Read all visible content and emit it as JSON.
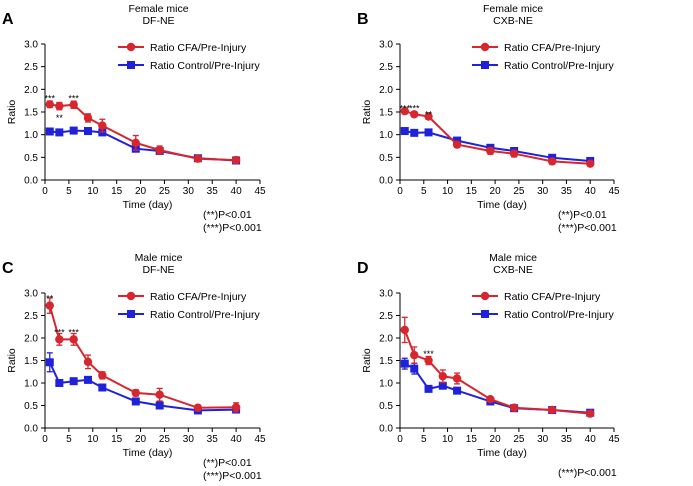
{
  "colors": {
    "cfa": "#d7262e",
    "control": "#1f22d9"
  },
  "chart_data": [
    {
      "letter": "A",
      "title": [
        "Female mice",
        "DF-NE"
      ],
      "type": "line",
      "xlabel": "Time (day)",
      "ylabel": "Ratio",
      "xlim": [
        0,
        45
      ],
      "ylim": [
        0,
        3.0
      ],
      "xticks": [
        "0",
        "5",
        "10",
        "15",
        "20",
        "25",
        "30",
        "35",
        "40",
        "45"
      ],
      "yticks": [
        "0.0",
        "0.5",
        "1.0",
        "1.5",
        "2.0",
        "2.5",
        "3.0"
      ],
      "x": [
        1,
        3,
        6,
        9,
        12,
        19,
        24,
        32,
        40
      ],
      "series": [
        {
          "name": "Ratio CFA/Pre-Injury",
          "key": "cfa",
          "values": [
            1.67,
            1.63,
            1.66,
            1.37,
            1.2,
            0.82,
            0.66,
            0.47,
            0.44
          ],
          "errors": [
            0.07,
            0.08,
            0.08,
            0.09,
            0.14,
            0.16,
            0.09,
            0.06,
            0.07
          ]
        },
        {
          "name": "Ratio Control/Pre-Injury",
          "key": "control",
          "values": [
            1.07,
            1.05,
            1.09,
            1.08,
            1.05,
            0.69,
            0.64,
            0.48,
            0.43
          ],
          "errors": [
            0.05,
            0.05,
            0.06,
            0.06,
            0.06,
            0.05,
            0.05,
            0.05,
            0.05
          ]
        }
      ],
      "annotations": [
        {
          "text": "***",
          "x": 1,
          "y": 1.8
        },
        {
          "text": "**",
          "x": 3,
          "y": 1.37
        },
        {
          "text": "***",
          "x": 6,
          "y": 1.8
        }
      ],
      "notes": [
        "(**)P<0.01",
        "(***)P<0.001"
      ],
      "legend_position": "top-right"
    },
    {
      "letter": "B",
      "title": [
        "Female mice",
        "CXB-NE"
      ],
      "type": "line",
      "xlabel": "Time (day)",
      "ylabel": "Ratio",
      "xlim": [
        0,
        45
      ],
      "ylim": [
        0,
        3.0
      ],
      "xticks": [
        "0",
        "5",
        "10",
        "15",
        "20",
        "25",
        "30",
        "35",
        "40",
        "45"
      ],
      "yticks": [
        "0.0",
        "0.5",
        "1.0",
        "1.5",
        "2.0",
        "2.5",
        "3.0"
      ],
      "x": [
        1,
        3,
        6,
        12,
        19,
        24,
        32,
        40
      ],
      "series": [
        {
          "name": "Ratio CFA/Pre-Injury",
          "key": "cfa",
          "values": [
            1.52,
            1.45,
            1.4,
            0.78,
            0.64,
            0.58,
            0.41,
            0.36
          ],
          "errors": [
            0.06,
            0.05,
            0.06,
            0.06,
            0.07,
            0.07,
            0.06,
            0.05
          ]
        },
        {
          "name": "Ratio Control/Pre-Injury",
          "key": "control",
          "values": [
            1.08,
            1.04,
            1.05,
            0.87,
            0.71,
            0.64,
            0.49,
            0.42
          ],
          "errors": [
            0.04,
            0.04,
            0.04,
            0.05,
            0.05,
            0.05,
            0.04,
            0.04
          ]
        }
      ],
      "annotations": [
        {
          "text": "***",
          "x": 1,
          "y": 1.58
        },
        {
          "text": "***",
          "x": 3,
          "y": 1.58
        },
        {
          "text": "**",
          "x": 6,
          "y": 1.45
        }
      ],
      "notes": [
        "(**)P<0.01",
        "(***)P<0.001"
      ],
      "legend_position": "top-right"
    },
    {
      "letter": "C",
      "title": [
        "Male mice",
        "DF-NE"
      ],
      "type": "line",
      "xlabel": "Time (day)",
      "ylabel": "Ratio",
      "xlim": [
        0,
        45
      ],
      "ylim": [
        0,
        3.0
      ],
      "xticks": [
        "0",
        "5",
        "10",
        "15",
        "20",
        "25",
        "30",
        "35",
        "40",
        "45"
      ],
      "yticks": [
        "0.0",
        "0.5",
        "1.0",
        "1.5",
        "2.0",
        "2.5",
        "3.0"
      ],
      "x": [
        1,
        3,
        6,
        9,
        12,
        19,
        24,
        32,
        40
      ],
      "series": [
        {
          "name": "Ratio CFA/Pre-Injury",
          "key": "cfa",
          "values": [
            2.72,
            1.97,
            1.97,
            1.47,
            1.17,
            0.78,
            0.74,
            0.45,
            0.46
          ],
          "errors": [
            0.17,
            0.13,
            0.13,
            0.15,
            0.08,
            0.07,
            0.14,
            0.06,
            0.1
          ]
        },
        {
          "name": "Ratio Control/Pre-Injury",
          "key": "control",
          "values": [
            1.46,
            1.0,
            1.04,
            1.07,
            0.9,
            0.59,
            0.5,
            0.39,
            0.41
          ],
          "errors": [
            0.21,
            0.05,
            0.05,
            0.07,
            0.06,
            0.05,
            0.06,
            0.04,
            0.04
          ]
        }
      ],
      "annotations": [
        {
          "text": "**",
          "x": 1,
          "y": 2.88
        },
        {
          "text": "***",
          "x": 3,
          "y": 2.12
        },
        {
          "text": "***",
          "x": 6,
          "y": 2.12
        }
      ],
      "notes": [
        "(**)P<0.01",
        "(***)P<0.001"
      ],
      "legend_position": "top-right"
    },
    {
      "letter": "D",
      "title": [
        "Male mice",
        "CXB-NE"
      ],
      "type": "line",
      "xlabel": "Time (day)",
      "ylabel": "Ratio",
      "xlim": [
        0,
        45
      ],
      "ylim": [
        0,
        3.0
      ],
      "xticks": [
        "0",
        "5",
        "10",
        "15",
        "20",
        "25",
        "30",
        "35",
        "40",
        "45"
      ],
      "yticks": [
        "0.0",
        "0.5",
        "1.0",
        "1.5",
        "2.0",
        "2.5",
        "3.0"
      ],
      "x": [
        1,
        3,
        6,
        9,
        12,
        19,
        24,
        32,
        40
      ],
      "series": [
        {
          "name": "Ratio CFA/Pre-Injury",
          "key": "cfa",
          "values": [
            2.18,
            1.62,
            1.5,
            1.15,
            1.1,
            0.64,
            0.45,
            0.4,
            0.32
          ],
          "errors": [
            0.28,
            0.18,
            0.09,
            0.14,
            0.12,
            0.05,
            0.05,
            0.05,
            0.04
          ]
        },
        {
          "name": "Ratio Control/Pre-Injury",
          "key": "control",
          "values": [
            1.43,
            1.32,
            0.87,
            0.94,
            0.83,
            0.59,
            0.44,
            0.4,
            0.34
          ],
          "errors": [
            0.12,
            0.12,
            0.05,
            0.06,
            0.05,
            0.05,
            0.04,
            0.04,
            0.04
          ]
        }
      ],
      "annotations": [
        {
          "text": "***",
          "x": 6,
          "y": 1.65
        }
      ],
      "notes": [
        "(***)P<0.001"
      ],
      "legend_position": "top-right"
    }
  ]
}
